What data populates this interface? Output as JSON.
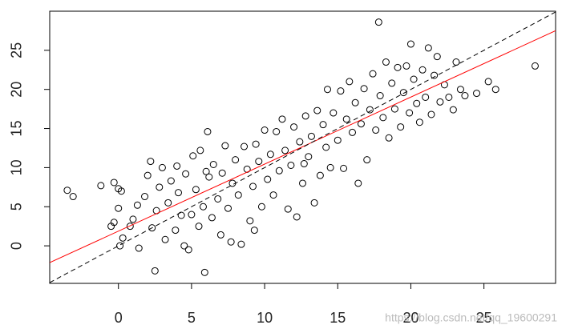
{
  "chart_data": {
    "type": "scatter",
    "xlim": [
      -4.7,
      29.9
    ],
    "ylim": [
      -4.8,
      30.0
    ],
    "xticks": [
      0,
      5,
      10,
      15,
      20,
      25
    ],
    "yticks": [
      0,
      5,
      10,
      15,
      20,
      25
    ],
    "point_color": "#000000",
    "x": [
      -3.5,
      -3.1,
      -1.2,
      -0.3,
      0,
      0.2,
      -0.3,
      -0.5,
      0,
      0.3,
      0.1,
      0.8,
      1.0,
      1.3,
      1.4,
      1.8,
      2.0,
      2.2,
      2.5,
      2.3,
      2.6,
      2.8,
      3.0,
      3.2,
      3.4,
      3.6,
      3.9,
      4.1,
      4.3,
      4.5,
      4.6,
      4.8,
      5.0,
      5.1,
      5.3,
      5.5,
      5.6,
      5.8,
      5.9,
      6.1,
      6.2,
      6.4,
      6.5,
      6.8,
      7.0,
      7.1,
      7.3,
      7.5,
      7.7,
      7.8,
      8.0,
      8.2,
      8.4,
      8.6,
      8.8,
      9.0,
      9.2,
      9.4,
      9.6,
      9.8,
      10.0,
      10.2,
      10.4,
      10.6,
      10.8,
      11.0,
      11.2,
      11.4,
      11.6,
      11.8,
      12.0,
      12.2,
      12.4,
      12.6,
      12.8,
      13.0,
      13.2,
      13.4,
      13.6,
      13.8,
      14.0,
      14.2,
      14.5,
      14.7,
      15.0,
      15.2,
      15.4,
      15.6,
      15.8,
      16.0,
      16.2,
      16.4,
      16.6,
      16.8,
      17.0,
      17.2,
      17.4,
      17.6,
      17.8,
      17.9,
      18.1,
      18.3,
      18.5,
      18.7,
      18.9,
      19.1,
      19.3,
      19.5,
      19.7,
      19.9,
      20.0,
      20.2,
      20.4,
      20.6,
      20.8,
      21.0,
      21.2,
      21.4,
      21.6,
      21.8,
      22.0,
      22.3,
      22.6,
      22.9,
      23.1,
      23.4,
      23.7,
      24.5,
      25.3,
      25.8,
      28.5,
      6.0,
      4.0,
      9.3,
      14.3,
      12.7
    ],
    "values": [
      7.1,
      6.3,
      7.7,
      8.1,
      7.3,
      7.0,
      3.0,
      2.5,
      4.8,
      1.0,
      0.0,
      2.5,
      3.4,
      5.2,
      -0.3,
      6.3,
      9.0,
      10.8,
      -3.2,
      2.3,
      4.5,
      7.5,
      10.0,
      0.8,
      5.5,
      8.3,
      2.0,
      6.8,
      3.9,
      0.0,
      9.2,
      -0.5,
      4.0,
      11.5,
      7.2,
      2.5,
      12.2,
      5.0,
      -3.4,
      14.6,
      8.8,
      3.6,
      10.4,
      6.0,
      1.4,
      9.3,
      12.8,
      4.8,
      0.5,
      8.0,
      11.0,
      6.5,
      0.2,
      12.7,
      9.8,
      3.2,
      7.6,
      13.0,
      10.8,
      5.0,
      14.8,
      8.5,
      11.7,
      6.5,
      14.6,
      9.6,
      16.2,
      12.2,
      4.7,
      10.3,
      15.2,
      3.7,
      13.3,
      8.0,
      16.6,
      11.4,
      14.0,
      5.5,
      17.3,
      9.0,
      15.5,
      12.6,
      10.0,
      17.0,
      13.5,
      19.8,
      9.9,
      16.2,
      21.0,
      14.5,
      18.3,
      8.0,
      15.6,
      20.1,
      11.0,
      17.4,
      22.0,
      14.8,
      28.6,
      19.2,
      16.4,
      23.5,
      13.8,
      20.8,
      17.5,
      22.8,
      15.2,
      19.6,
      23.0,
      17.0,
      25.8,
      21.3,
      18.2,
      15.8,
      22.5,
      19.0,
      25.3,
      16.8,
      21.8,
      24.2,
      18.4,
      20.6,
      19.0,
      17.4,
      23.5,
      20.0,
      19.2,
      19.5,
      21.0,
      20.0,
      23.0,
      9.5,
      10.2,
      2.0,
      20.0,
      10.5
    ],
    "lines": [
      {
        "slope": 0.857,
        "intercept": 1.88,
        "color": "#ff0000",
        "dashed": false
      },
      {
        "slope": 1,
        "intercept": 0,
        "color": "#000000",
        "dashed": true
      }
    ],
    "annotation": "https://blog.csdn.net/qq_19600291"
  }
}
